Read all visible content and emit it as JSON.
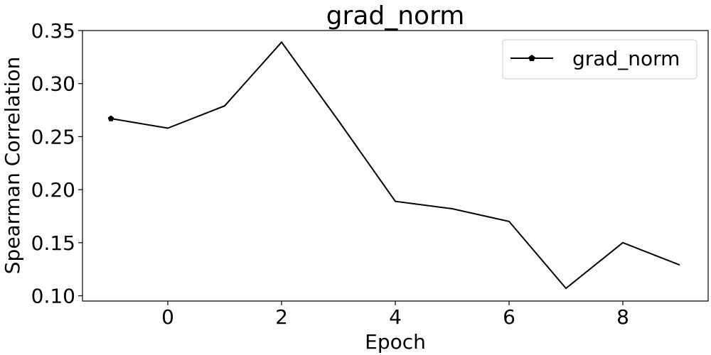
{
  "chart_data": {
    "type": "line",
    "title": "grad_norm",
    "xlabel": "Epoch",
    "ylabel": "Spearman Correlation",
    "xlim": [
      -1.5,
      9.5
    ],
    "ylim": [
      0.095,
      0.35
    ],
    "xticks": [
      0,
      2,
      4,
      6,
      8
    ],
    "yticks": [
      0.1,
      0.15,
      0.2,
      0.25,
      0.3,
      0.35
    ],
    "xtick_labels": [
      "0",
      "2",
      "4",
      "6",
      "8"
    ],
    "ytick_labels": [
      "0.10",
      "0.15",
      "0.20",
      "0.25",
      "0.30",
      "0.35"
    ],
    "grid": false,
    "legend_position": "top-right",
    "series": [
      {
        "name": "grad_norm",
        "color": "#000000",
        "marker": "pentagon",
        "markers_on": [
          0
        ],
        "x": [
          -1,
          0,
          1,
          2,
          3,
          4,
          5,
          6,
          7,
          8,
          9
        ],
        "y": [
          0.267,
          0.258,
          0.279,
          0.339,
          0.265,
          0.189,
          0.182,
          0.17,
          0.107,
          0.15,
          0.129
        ]
      }
    ]
  }
}
